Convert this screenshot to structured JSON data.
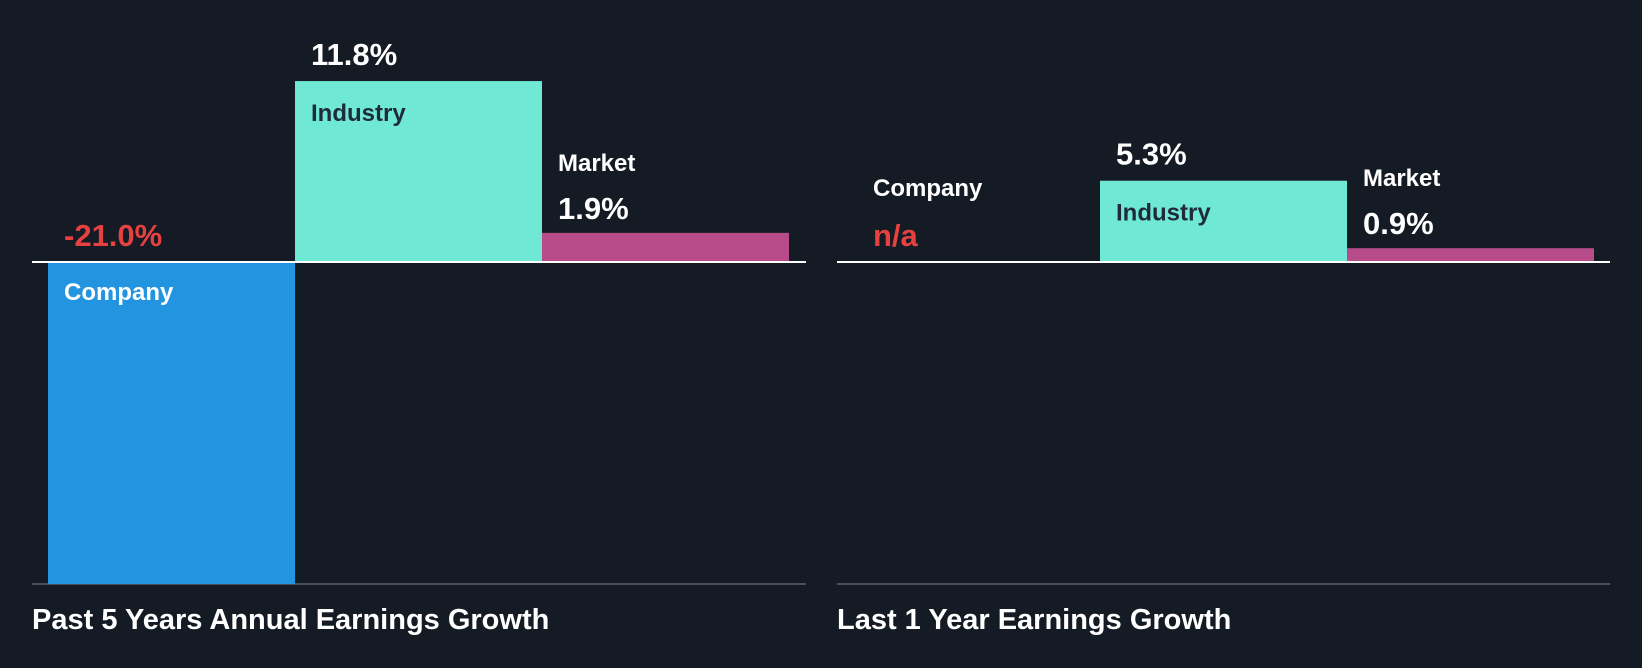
{
  "chart_data": [
    {
      "type": "bar",
      "title": "Past 5 Years Annual Earnings Growth",
      "categories": [
        "Company",
        "Industry",
        "Market"
      ],
      "values": [
        -21.0,
        11.8,
        1.9
      ],
      "value_labels": [
        "-21.0%",
        "11.8%",
        "1.9%"
      ],
      "unit": "%",
      "ylim": [
        -21.0,
        11.8
      ],
      "grid": false,
      "legend": "none"
    },
    {
      "type": "bar",
      "title": "Last 1 Year Earnings Growth",
      "categories": [
        "Company",
        "Industry",
        "Market"
      ],
      "values": [
        null,
        5.3,
        0.9
      ],
      "value_labels": [
        "n/a",
        "5.3%",
        "0.9%"
      ],
      "unit": "%",
      "ylim": [
        -21.0,
        11.8
      ],
      "grid": false,
      "legend": "none"
    }
  ],
  "colors": {
    "background": "#151b24",
    "company": "#2394df",
    "industry": "#6fe8d6",
    "market": "#b84b89",
    "negative_text": "#e64141",
    "text": "#ffffff",
    "label_on_light": "#1f2b38",
    "axis": "#ffffff",
    "baseline": "#5b606a"
  }
}
